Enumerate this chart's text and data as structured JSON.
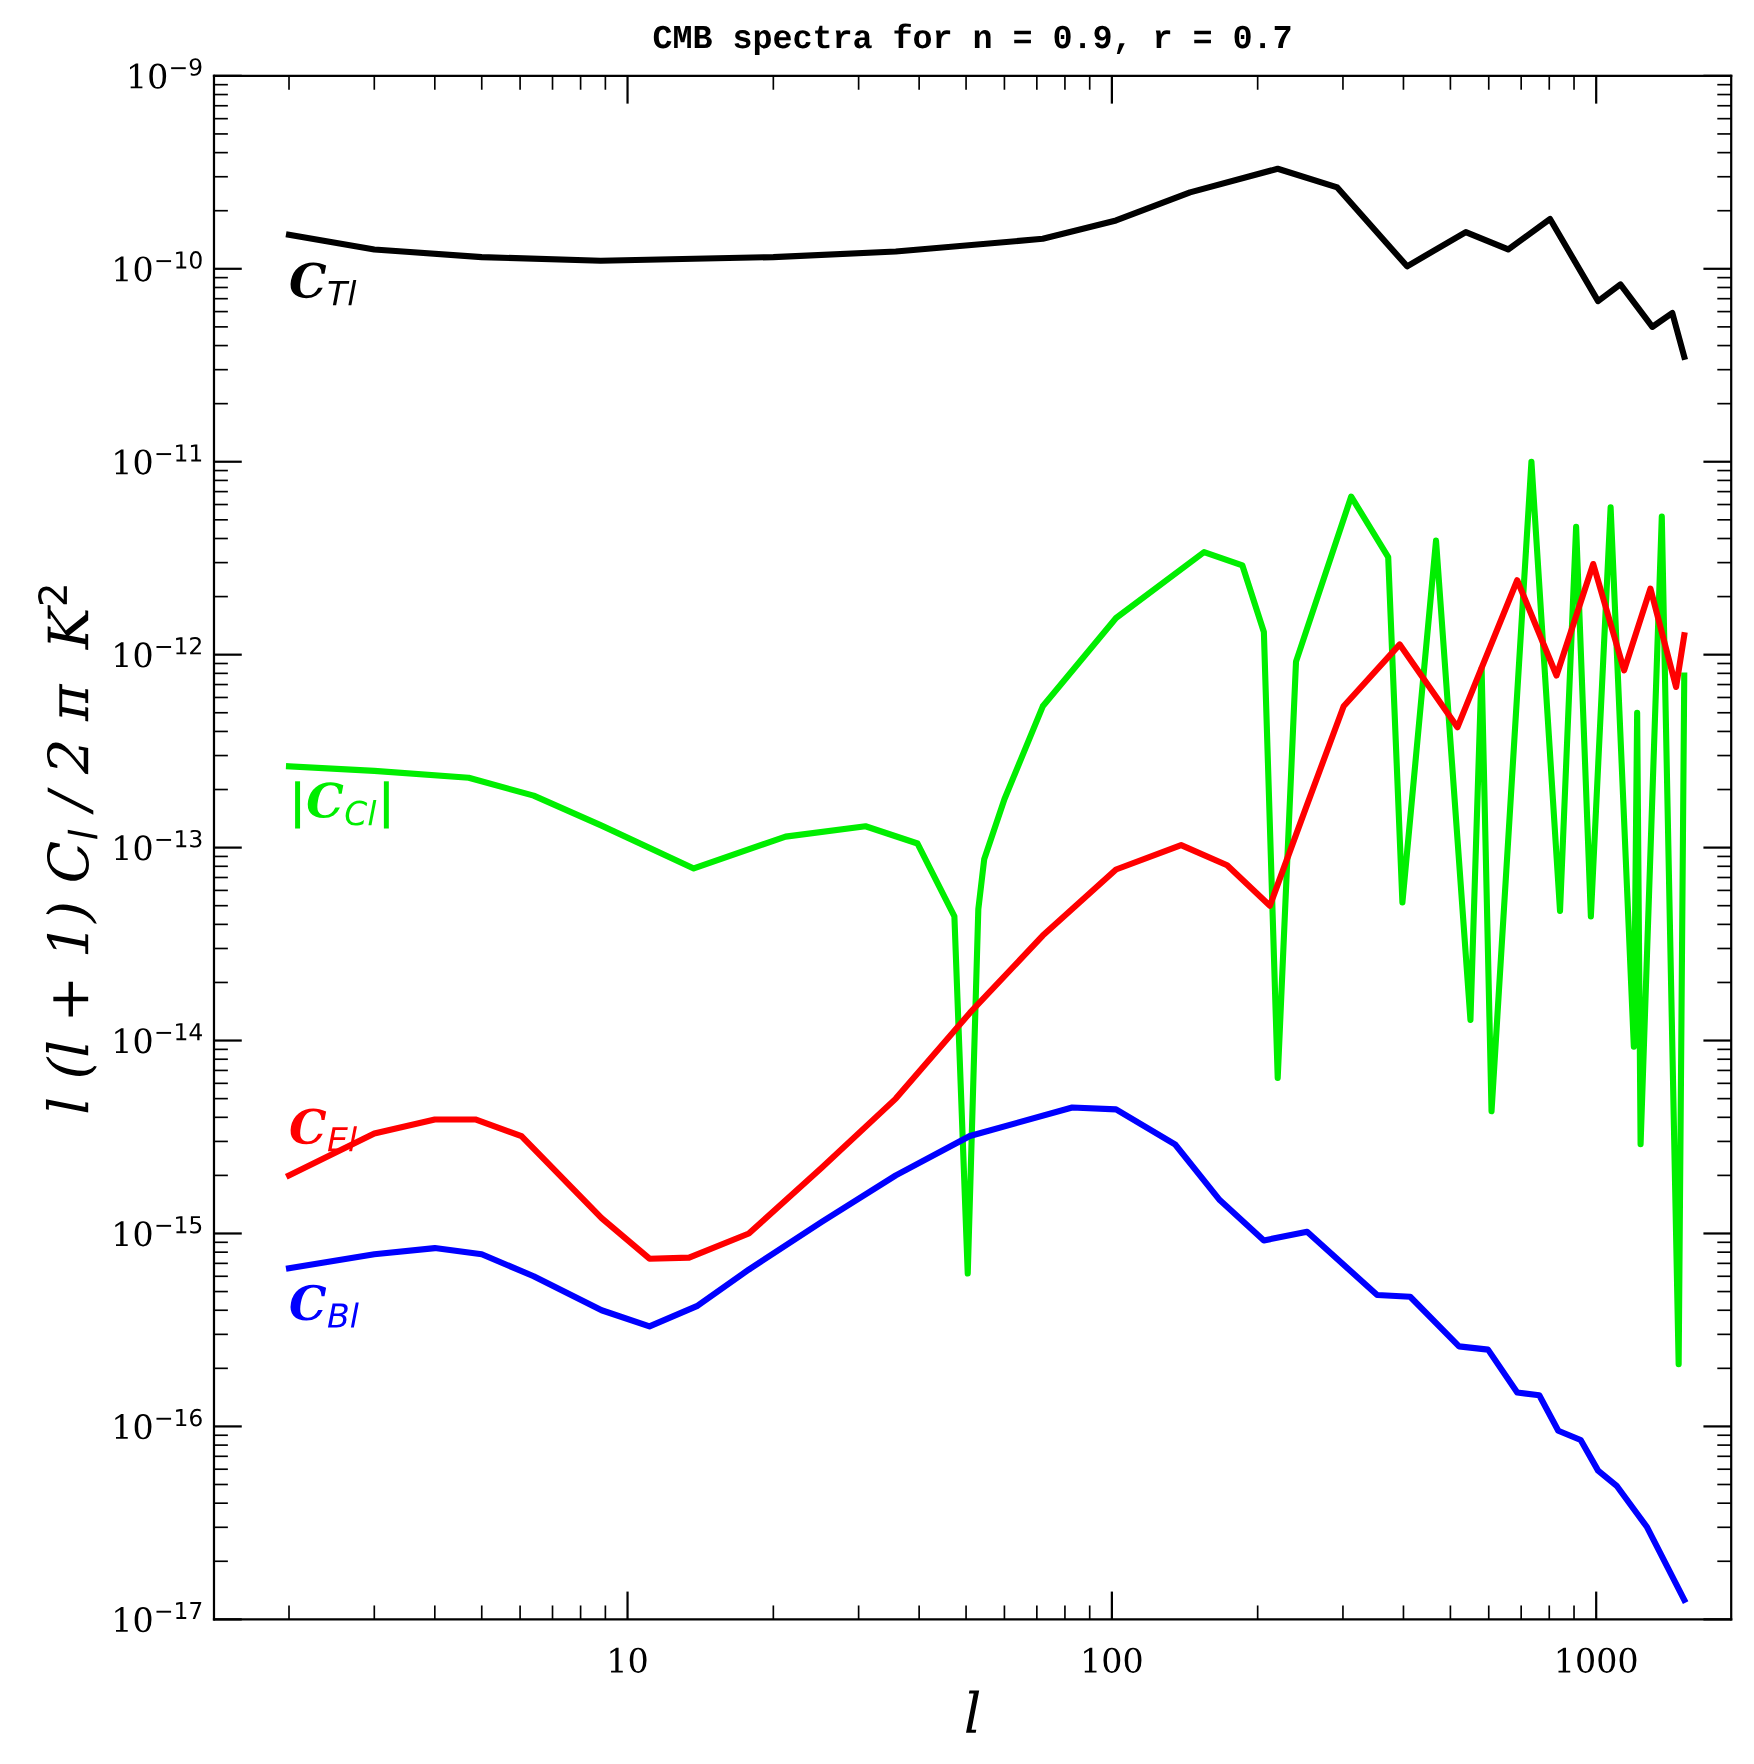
{
  "chart_data": {
    "type": "line",
    "title": "CMB spectra for n = 0.9, r = 0.7",
    "xlabel": "l",
    "ylabel": "l (l + 1) C$_{l}$ / 2 π  K$^{2}$",
    "log": "xy",
    "grid": false,
    "legend": false,
    "marker": "none",
    "line_style": "solid",
    "xlim": [
      1.4,
      1900
    ],
    "ylim": [
      1e-17,
      1e-09
    ],
    "xticks": [
      10,
      100,
      1000
    ],
    "yticks": [
      {
        "value": 1e-17,
        "label": "10$^{−17}$"
      },
      {
        "value": 1e-16,
        "label": "10$^{−16}$"
      },
      {
        "value": 1e-15,
        "label": "10$^{−15}$"
      },
      {
        "value": 1e-14,
        "label": "10$^{−14}$"
      },
      {
        "value": 1e-13,
        "label": "10$^{−13}$"
      },
      {
        "value": 1e-12,
        "label": "10$^{−12}$"
      },
      {
        "value": 1e-11,
        "label": "10$^{−11}$"
      },
      {
        "value": 1e-10,
        "label": "10$^{−10}$"
      },
      {
        "value": 1e-09,
        "label": "10$^{−9}$"
      }
    ],
    "series": [
      {
        "name": "C$_{Tl}$",
        "color": "#000000",
        "x": [
          2,
          3,
          5,
          8.8,
          20,
          35.8,
          72,
          102,
          145,
          220,
          292,
          407,
          538,
          658,
          803,
          1009,
          1122,
          1306,
          1436,
          1520
        ],
        "values": [
          1.5e-10,
          1.26e-10,
          1.15e-10,
          1.1e-10,
          1.15e-10,
          1.23e-10,
          1.43e-10,
          1.78e-10,
          2.49e-10,
          3.3e-10,
          2.64e-10,
          1.03e-10,
          1.55e-10,
          1.26e-10,
          1.81e-10,
          6.8e-11,
          8.3e-11,
          5e-11,
          5.9e-11,
          3.5e-11
        ]
      },
      {
        "name": "|C$_{Cl}$|",
        "color": "#00ee00",
        "x": [
          2,
          3,
          4.7,
          6.4,
          8.84,
          13.7,
          21.2,
          31,
          39.7,
          47.3,
          50.4,
          53,
          54.5,
          60,
          72,
          102,
          155,
          186,
          206,
          220,
          240,
          312,
          372,
          398,
          467,
          550,
          580,
          608,
          735,
          842,
          909,
          975,
          1071,
          1196,
          1215,
          1235,
          1366,
          1480,
          1520
        ],
        "values": [
          2.64e-13,
          2.5e-13,
          2.3e-13,
          1.86e-13,
          1.3e-13,
          7.8e-14,
          1.14e-13,
          1.29e-13,
          1.05e-13,
          4.4e-14,
          6.2e-16,
          4.8e-14,
          8.7e-14,
          1.78e-13,
          5.4e-13,
          1.55e-12,
          3.4e-12,
          2.9e-12,
          1.31e-12,
          6.4e-15,
          9.2e-13,
          6.6e-12,
          3.2e-12,
          5.2e-14,
          3.9e-12,
          1.28e-14,
          8.5e-13,
          4.3e-15,
          1e-11,
          4.7e-14,
          4.6e-12,
          4.4e-14,
          5.8e-12,
          9.3e-15,
          5e-13,
          2.9e-15,
          5.2e-12,
          2.1e-16,
          7.8e-13
        ]
      },
      {
        "name": "C$_{El}$",
        "color": "#ff0000",
        "x": [
          2,
          3,
          4,
          4.85,
          6.04,
          8.84,
          11.1,
          13.4,
          17.8,
          25.2,
          35.8,
          50.9,
          72,
          102,
          139,
          173,
          212,
          253,
          301,
          393,
          517,
          687,
          828,
          986,
          1142,
          1294,
          1462,
          1520
        ],
        "values": [
          2e-15,
          3.3e-15,
          3.9e-15,
          3.9e-15,
          3.2e-15,
          1.2e-15,
          7.4e-16,
          7.5e-16,
          1e-15,
          2.2e-15,
          5e-15,
          1.39e-14,
          3.5e-14,
          7.7e-14,
          1.03e-13,
          8.1e-14,
          5e-14,
          1.67e-13,
          5.4e-13,
          1.13e-12,
          4.2e-13,
          2.43e-12,
          7.8e-13,
          2.95e-12,
          8.3e-13,
          2.2e-12,
          6.8e-13,
          1.26e-12
        ]
      },
      {
        "name": "C$_{Bl}$",
        "color": "#0000ff",
        "x": [
          2,
          3,
          4,
          5,
          6.4,
          8.84,
          11.1,
          13.9,
          17.8,
          25.2,
          35.8,
          50.9,
          82.8,
          102,
          135,
          167,
          206,
          253,
          353,
          413,
          521,
          598,
          687,
          763,
          835,
          929,
          1009,
          1104,
          1274,
          1520
        ],
        "values": [
          6.6e-16,
          7.8e-16,
          8.4e-16,
          7.8e-16,
          6e-16,
          4e-16,
          3.3e-16,
          4.2e-16,
          6.5e-16,
          1.15e-15,
          2e-15,
          3.2e-15,
          4.5e-15,
          4.4e-15,
          2.9e-15,
          1.49e-15,
          9.2e-16,
          1.02e-15,
          4.8e-16,
          4.7e-16,
          2.6e-16,
          2.5e-16,
          1.5e-16,
          1.45e-16,
          9.5e-17,
          8.5e-17,
          5.9e-17,
          4.9e-17,
          3e-17,
          1.26e-17
        ]
      }
    ]
  }
}
